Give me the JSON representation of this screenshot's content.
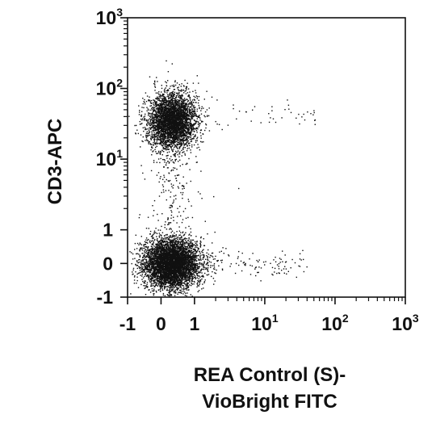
{
  "chart_data": {
    "type": "scatter",
    "subtype": "flow-cytometry-dot-plot",
    "scale": "biexponential (linear near 0, log above ~1)",
    "xlabel": [
      "REA Control (S)-",
      "VioBright FITC"
    ],
    "ylabel": "CD3-APC",
    "xlim": [
      -1,
      1000
    ],
    "ylim": [
      -1,
      1000
    ],
    "x_ticks": [
      {
        "base": "-1",
        "exp": ""
      },
      {
        "base": "0",
        "exp": ""
      },
      {
        "base": "1",
        "exp": ""
      },
      {
        "base": "10",
        "exp": "1"
      },
      {
        "base": "10",
        "exp": "2"
      },
      {
        "base": "10",
        "exp": "3"
      }
    ],
    "y_ticks": [
      {
        "base": "-1",
        "exp": ""
      },
      {
        "base": "0",
        "exp": ""
      },
      {
        "base": "1",
        "exp": ""
      },
      {
        "base": "10",
        "exp": "1"
      },
      {
        "base": "10",
        "exp": "2"
      },
      {
        "base": "10",
        "exp": "3"
      }
    ],
    "grid": false,
    "legend": "none",
    "point_color": "#111111",
    "populations": [
      {
        "center_x": 0.3,
        "center_y": 0.0,
        "relative_size": "largest, dense",
        "note": "CD3-negative cells"
      },
      {
        "center_x": 0.3,
        "center_y": 35,
        "relative_size": "large, dense",
        "note": "CD3-positive cells"
      },
      {
        "center_x": 15,
        "center_y": 0.1,
        "relative_size": "sparse scatter",
        "note": "few events along x"
      },
      {
        "center_x": 20,
        "center_y": 40,
        "relative_size": "sparse scatter",
        "note": "few events along x"
      }
    ]
  }
}
